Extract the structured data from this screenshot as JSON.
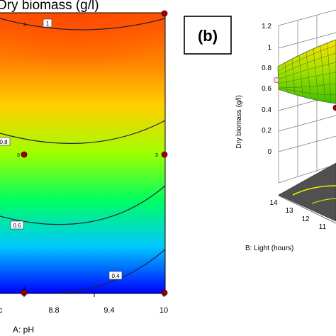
{
  "chart_data": [
    {
      "type": "heatmap",
      "subtype": "contour",
      "title": "Dry biomass (g/l)",
      "xlabel": "A: pH",
      "x_ticks": [
        "8.8",
        "9.4",
        "10"
      ],
      "x_tick_values": [
        8.8,
        9.4,
        10
      ],
      "xlim": [
        7.6,
        10
      ],
      "colormap": [
        "#0000ff",
        "#00c8ff",
        "#00ff60",
        "#a0ff00",
        "#ffd000",
        "#ff8000",
        "#ff5000"
      ],
      "contours": [
        {
          "level": 1,
          "label": "1"
        },
        {
          "level": 0.8,
          "label": "0.8"
        },
        {
          "level": 0.6,
          "label": "0.6"
        },
        {
          "level": 0.4,
          "label": "0.4"
        }
      ],
      "center_point_label": "3",
      "design_points": [
        {
          "x": 8.2,
          "label": "3"
        },
        {
          "x": 8.2,
          "label": "3"
        },
        {
          "x": 10,
          "label": "3"
        },
        {
          "x": 8.2,
          "label": "3"
        },
        {
          "x": 10,
          "label": ""
        },
        {
          "x": 10,
          "label": ""
        }
      ]
    },
    {
      "type": "surface3d",
      "panel_label": "(b)",
      "zlabel": "Dry biomass (g/l)",
      "z_ticks": [
        "1.2",
        "1",
        "0.8",
        "0.6",
        "0.4",
        "0.2",
        "0"
      ],
      "z_tick_values": [
        1.2,
        1,
        0.8,
        0.6,
        0.4,
        0.2,
        0
      ],
      "zlim": [
        0,
        1.2
      ],
      "ylabel": "B: Light (hours)",
      "y_ticks": [
        "14",
        "13",
        "12",
        "11"
      ],
      "y_tick_values": [
        14,
        13,
        12,
        11
      ],
      "surface_colors": [
        "#40c000",
        "#a0e000",
        "#ffe000"
      ],
      "floor_color": "#505050",
      "floor_contour_color": "#f0f000"
    }
  ]
}
